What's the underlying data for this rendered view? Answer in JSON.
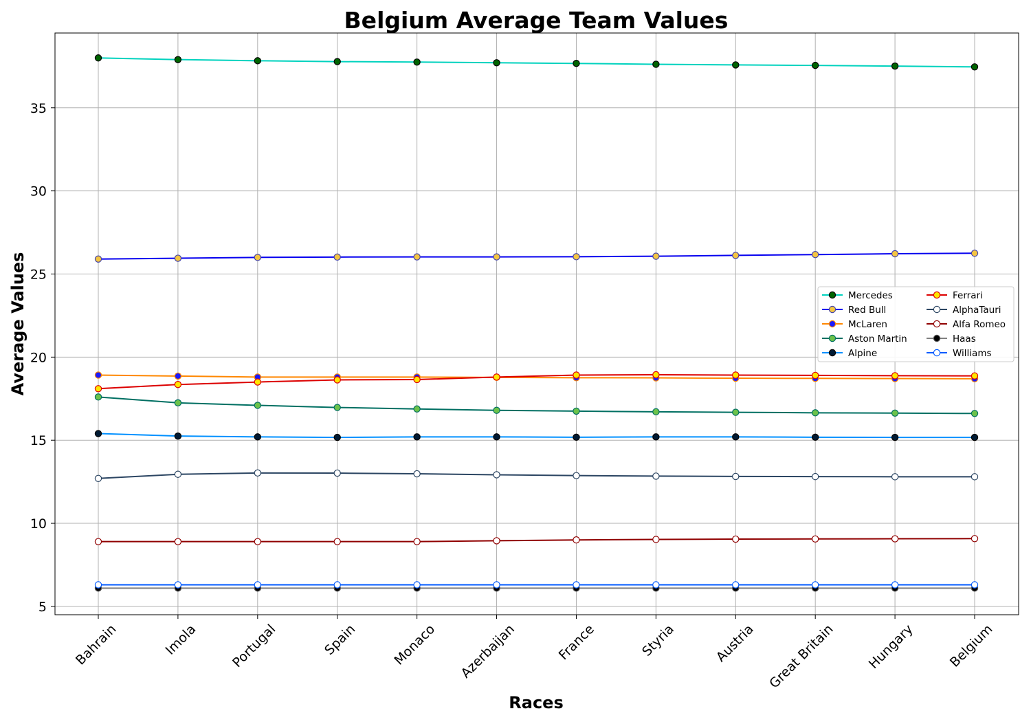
{
  "chart_data": {
    "type": "line",
    "title": "Belgium Average Team Values",
    "xlabel": "Races",
    "ylabel": "Average Values",
    "categories": [
      "Bahrain",
      "Imola",
      "Portugal",
      "Spain",
      "Monaco",
      "Azerbaijan",
      "France",
      "Styria",
      "Austria",
      "Great Britain",
      "Hungary",
      "Belgium"
    ],
    "ylim": [
      4.5,
      39.5
    ],
    "yticks": [
      5,
      10,
      15,
      20,
      25,
      30,
      35
    ],
    "grid": true,
    "legend_position": "center-right",
    "legend_columns": 2,
    "series": [
      {
        "name": "Mercedes",
        "line_color": "#00d2be",
        "marker_face": "#006400",
        "marker_edge": "#000000",
        "values": [
          38.0,
          37.9,
          37.83,
          37.78,
          37.75,
          37.71,
          37.67,
          37.62,
          37.58,
          37.55,
          37.51,
          37.46
        ]
      },
      {
        "name": "Red Bull",
        "line_color": "#0600ef",
        "marker_face": "#f4c542",
        "marker_edge": "#4444aa",
        "values": [
          25.9,
          25.95,
          26.0,
          26.02,
          26.03,
          26.03,
          26.04,
          26.07,
          26.12,
          26.17,
          26.22,
          26.25
        ]
      },
      {
        "name": "McLaren",
        "line_color": "#ff8700",
        "marker_face": "#1a1aff",
        "marker_edge": "#ff8700",
        "values": [
          18.92,
          18.86,
          18.8,
          18.8,
          18.8,
          18.78,
          18.76,
          18.75,
          18.73,
          18.72,
          18.71,
          18.7
        ]
      },
      {
        "name": "Aston Martin",
        "line_color": "#006f62",
        "marker_face": "#6cc24a",
        "marker_edge": "#006f62",
        "values": [
          17.6,
          17.25,
          17.1,
          16.97,
          16.88,
          16.8,
          16.75,
          16.71,
          16.68,
          16.65,
          16.63,
          16.61
        ]
      },
      {
        "name": "Alpine",
        "line_color": "#0090ff",
        "marker_face": "#001a33",
        "marker_edge": "#000000",
        "values": [
          15.4,
          15.25,
          15.2,
          15.17,
          15.2,
          15.2,
          15.18,
          15.2,
          15.2,
          15.18,
          15.17,
          15.17
        ]
      },
      {
        "name": "Ferrari",
        "line_color": "#dc0000",
        "marker_face": "#ffe600",
        "marker_edge": "#dc0000",
        "values": [
          18.1,
          18.35,
          18.5,
          18.63,
          18.65,
          18.8,
          18.92,
          18.94,
          18.92,
          18.9,
          18.88,
          18.87
        ]
      },
      {
        "name": "AlphaTauri",
        "line_color": "#2b4562",
        "marker_face": "#ffffff",
        "marker_edge": "#2b4562",
        "values": [
          12.7,
          12.95,
          13.03,
          13.02,
          12.98,
          12.92,
          12.87,
          12.84,
          12.82,
          12.81,
          12.8,
          12.8
        ]
      },
      {
        "name": "Alfa Romeo",
        "line_color": "#900000",
        "marker_face": "#ffffff",
        "marker_edge": "#900000",
        "values": [
          8.9,
          8.9,
          8.9,
          8.9,
          8.9,
          8.95,
          9.0,
          9.03,
          9.05,
          9.06,
          9.07,
          9.08
        ]
      },
      {
        "name": "Haas",
        "line_color": "#808080",
        "marker_face": "#000000",
        "marker_edge": "#555555",
        "values": [
          6.1,
          6.1,
          6.1,
          6.1,
          6.1,
          6.1,
          6.1,
          6.1,
          6.1,
          6.1,
          6.1,
          6.1
        ]
      },
      {
        "name": "Williams",
        "line_color": "#005aff",
        "marker_face": "#ffffff",
        "marker_edge": "#005aff",
        "values": [
          6.3,
          6.3,
          6.3,
          6.3,
          6.3,
          6.3,
          6.3,
          6.3,
          6.3,
          6.3,
          6.3,
          6.3
        ]
      }
    ]
  }
}
